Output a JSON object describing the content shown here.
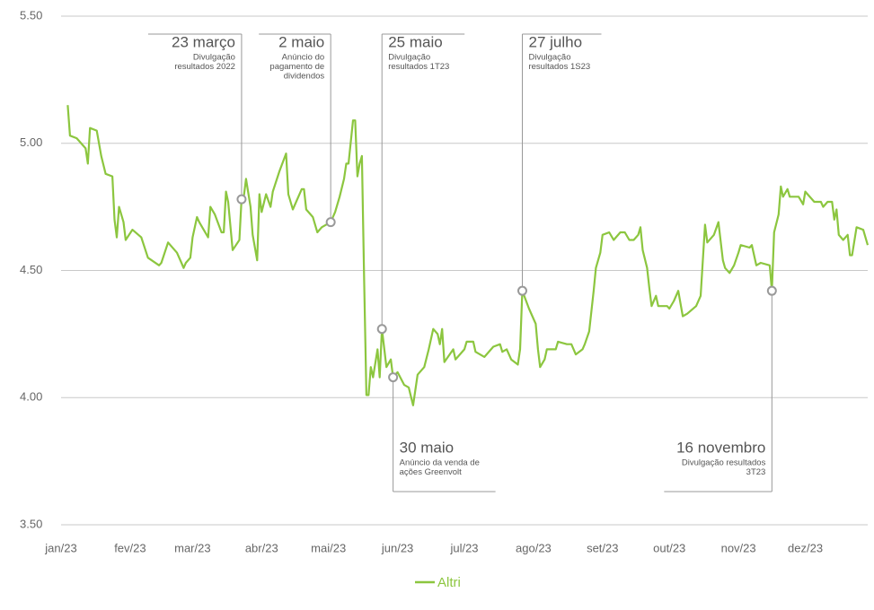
{
  "chart_data": {
    "type": "line",
    "x": [
      3,
      4,
      7,
      11,
      12,
      13,
      16,
      18,
      20,
      23,
      24,
      25,
      26,
      28,
      29,
      32,
      36,
      39,
      44,
      45,
      48,
      52,
      54,
      55,
      56,
      58,
      59,
      61,
      62,
      66,
      67,
      69,
      72,
      73,
      74,
      75,
      77,
      80,
      81,
      82,
      83,
      85,
      86,
      88,
      89,
      90,
      92,
      94,
      95,
      98,
      101,
      102,
      104,
      108,
      109,
      110,
      113,
      115,
      117,
      121,
      123,
      125,
      127,
      128,
      129,
      131,
      132,
      133,
      134,
      135,
      136,
      137,
      138,
      139,
      140,
      142,
      143,
      144,
      146,
      148,
      149,
      151,
      154,
      156,
      158,
      160,
      163,
      165,
      167,
      169,
      170,
      171,
      172,
      176,
      177,
      181,
      182,
      185,
      186,
      190,
      194,
      197,
      198,
      200,
      202,
      205,
      206,
      207,
      210,
      213,
      214,
      215,
      217,
      218,
      222,
      223,
      227,
      229,
      231,
      234,
      235,
      237,
      239,
      240,
      242,
      243,
      246,
      248,
      251,
      253,
      255,
      257,
      259,
      260,
      261,
      263,
      264,
      265,
      267,
      268,
      272,
      273,
      275,
      277,
      279,
      281,
      285,
      287,
      289,
      290,
      293,
      295,
      297,
      298,
      300,
      302,
      304,
      305,
      309,
      310,
      312,
      314,
      318,
      319,
      320,
      322,
      323,
      324,
      326,
      327,
      331,
      333,
      334,
      338,
      341,
      342,
      344,
      346,
      347,
      348,
      349,
      351,
      353,
      354,
      355,
      357,
      360,
      362
    ],
    "series": [
      {
        "name": "Altri",
        "color": "#8cc63f",
        "values": [
          5.15,
          5.03,
          5.02,
          4.98,
          4.92,
          5.06,
          5.05,
          4.95,
          4.88,
          4.87,
          4.7,
          4.63,
          4.75,
          4.69,
          4.62,
          4.66,
          4.63,
          4.55,
          4.52,
          4.53,
          4.61,
          4.57,
          4.53,
          4.51,
          4.53,
          4.55,
          4.63,
          4.71,
          4.69,
          4.63,
          4.75,
          4.72,
          4.65,
          4.65,
          4.81,
          4.77,
          4.58,
          4.62,
          4.78,
          4.79,
          4.86,
          4.75,
          4.64,
          4.54,
          4.8,
          4.73,
          4.8,
          4.75,
          4.81,
          4.89,
          4.96,
          4.8,
          4.74,
          4.82,
          4.82,
          4.74,
          4.71,
          4.65,
          4.67,
          4.69,
          4.73,
          4.79,
          4.86,
          4.92,
          4.92,
          5.09,
          5.09,
          4.87,
          4.92,
          4.95,
          4.46,
          4.01,
          4.01,
          4.12,
          4.08,
          4.19,
          4.08,
          4.27,
          4.12,
          4.15,
          4.08,
          4.1,
          4.05,
          4.04,
          3.97,
          4.09,
          4.12,
          4.19,
          4.27,
          4.25,
          4.21,
          4.27,
          4.14,
          4.19,
          4.15,
          4.19,
          4.22,
          4.22,
          4.18,
          4.16,
          4.2,
          4.21,
          4.18,
          4.19,
          4.15,
          4.13,
          4.19,
          4.42,
          4.35,
          4.29,
          4.19,
          4.12,
          4.15,
          4.19,
          4.19,
          4.22,
          4.21,
          4.21,
          4.17,
          4.19,
          4.21,
          4.26,
          4.42,
          4.51,
          4.57,
          4.64,
          4.65,
          4.62,
          4.65,
          4.65,
          4.62,
          4.62,
          4.64,
          4.67,
          4.58,
          4.51,
          4.43,
          4.36,
          4.4,
          4.36,
          4.36,
          4.35,
          4.38,
          4.42,
          4.32,
          4.33,
          4.36,
          4.4,
          4.68,
          4.61,
          4.64,
          4.69,
          4.54,
          4.51,
          4.49,
          4.52,
          4.57,
          4.6,
          4.59,
          4.6,
          4.52,
          4.53,
          4.52,
          4.42,
          4.65,
          4.72,
          4.83,
          4.79,
          4.82,
          4.79,
          4.79,
          4.76,
          4.81,
          4.77,
          4.77,
          4.75,
          4.77,
          4.77,
          4.7,
          4.74,
          4.64,
          4.62,
          4.64,
          4.56,
          4.56,
          4.67,
          4.66,
          4.6
        ]
      }
    ],
    "xlim": [
      0,
      362
    ],
    "xticks": [
      {
        "value": 0,
        "label": "jan/23"
      },
      {
        "value": 31,
        "label": "fev/23"
      },
      {
        "value": 59,
        "label": "mar/23"
      },
      {
        "value": 90,
        "label": "abr/23"
      },
      {
        "value": 120,
        "label": "mai/23"
      },
      {
        "value": 151,
        "label": "jun/23"
      },
      {
        "value": 181,
        "label": "jul/23"
      },
      {
        "value": 212,
        "label": "ago/23"
      },
      {
        "value": 243,
        "label": "set/23"
      },
      {
        "value": 273,
        "label": "out/23"
      },
      {
        "value": 304,
        "label": "nov/23"
      },
      {
        "value": 334,
        "label": "dez/23"
      }
    ],
    "ylim": [
      3.5,
      5.5
    ],
    "yticks": [
      {
        "value": 3.5,
        "label": "3.50"
      },
      {
        "value": 4,
        "label": "4.00"
      },
      {
        "value": 4.5,
        "label": "4.50"
      },
      {
        "value": 5,
        "label": "5.00"
      },
      {
        "value": 5.5,
        "label": "5.50"
      }
    ],
    "grid": true,
    "legend": "bottom",
    "annotations": [
      {
        "x": 81,
        "title": "23 março",
        "text": [
          "Divulgação",
          "resultados 2022"
        ]
      },
      {
        "x": 121,
        "title": "2 maio",
        "text": [
          "Anúncio do",
          "pagamento de",
          "dividendos"
        ]
      },
      {
        "x": 144,
        "title": "25 maio",
        "text": [
          "Divulgação",
          "resultados 1T23"
        ]
      },
      {
        "x": 149,
        "title": "30 maio",
        "text": [
          "Anúncio da venda de",
          "ações Greenvolt"
        ]
      },
      {
        "x": 207,
        "title": "27 julho",
        "text": [
          "Divulgação",
          "resultados 1S23"
        ]
      },
      {
        "x": 319,
        "title": "16 novembro",
        "text": [
          "Divulgação resultados",
          "3T23"
        ]
      }
    ]
  }
}
